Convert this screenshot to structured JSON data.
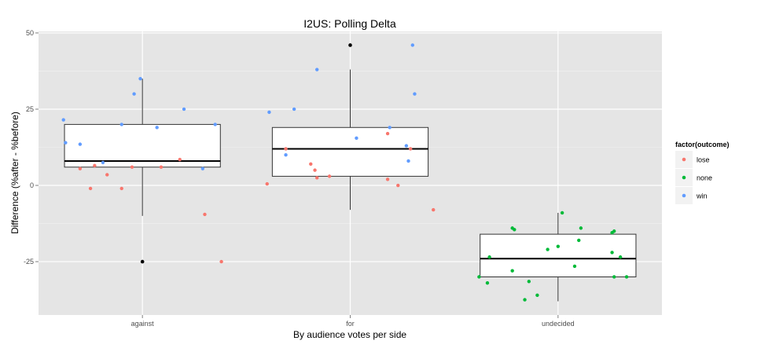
{
  "chart_data": {
    "type": "boxplot-jitter",
    "title": "I2US:  Polling Delta",
    "xlabel": "By audience votes per side",
    "ylabel": "Difference (%after - %before)",
    "categories": [
      "against",
      "for",
      "undecided"
    ],
    "y_ticks": [
      -25,
      0,
      25,
      50
    ],
    "ylim": [
      -42.5,
      50.5
    ],
    "grid": true,
    "legend": {
      "title": "factor(outcome)",
      "placement": "right",
      "entries": [
        "lose",
        "none",
        "win"
      ]
    },
    "colors": {
      "lose": "#F8766D",
      "none": "#00BA38",
      "win": "#619CFF",
      "outlier": "#000000",
      "panel": "#E5E5E5",
      "grid_major": "#FFFFFF",
      "grid_minor": "#F2F2F2"
    },
    "boxes": [
      {
        "category": "against",
        "whisker_low": -10,
        "q1": 6,
        "median": 8,
        "q3": 20,
        "whisker_high": 35,
        "outliers": [
          -25
        ]
      },
      {
        "category": "for",
        "whisker_low": -8,
        "q1": 3,
        "median": 12,
        "q3": 19,
        "whisker_high": 38,
        "outliers": [
          46
        ]
      },
      {
        "category": "undecided",
        "whisker_low": -38,
        "q1": -30,
        "median": -24,
        "q3": -16,
        "whisker_high": -9,
        "outliers": []
      }
    ],
    "points": [
      {
        "category": "against",
        "jitter": -0.38,
        "y": 21.5,
        "outcome": "win"
      },
      {
        "category": "against",
        "jitter": -0.37,
        "y": 14,
        "outcome": "win"
      },
      {
        "category": "against",
        "jitter": -0.3,
        "y": 13.5,
        "outcome": "win"
      },
      {
        "category": "against",
        "jitter": -0.19,
        "y": 7.5,
        "outcome": "win"
      },
      {
        "category": "against",
        "jitter": -0.1,
        "y": 20,
        "outcome": "win"
      },
      {
        "category": "against",
        "jitter": -0.04,
        "y": 30,
        "outcome": "win"
      },
      {
        "category": "against",
        "jitter": -0.01,
        "y": 35,
        "outcome": "win"
      },
      {
        "category": "against",
        "jitter": 0.07,
        "y": 19,
        "outcome": "win"
      },
      {
        "category": "against",
        "jitter": 0.2,
        "y": 25,
        "outcome": "win"
      },
      {
        "category": "against",
        "jitter": 0.29,
        "y": 5.5,
        "outcome": "win"
      },
      {
        "category": "against",
        "jitter": 0.35,
        "y": 20,
        "outcome": "win"
      },
      {
        "category": "against",
        "jitter": -0.3,
        "y": 5.5,
        "outcome": "lose"
      },
      {
        "category": "against",
        "jitter": -0.25,
        "y": -1,
        "outcome": "lose"
      },
      {
        "category": "against",
        "jitter": -0.23,
        "y": 6.5,
        "outcome": "lose"
      },
      {
        "category": "against",
        "jitter": -0.17,
        "y": 3.5,
        "outcome": "lose"
      },
      {
        "category": "against",
        "jitter": -0.1,
        "y": -1,
        "outcome": "lose"
      },
      {
        "category": "against",
        "jitter": -0.05,
        "y": 6,
        "outcome": "lose"
      },
      {
        "category": "against",
        "jitter": 0.09,
        "y": 6,
        "outcome": "lose"
      },
      {
        "category": "against",
        "jitter": 0.18,
        "y": 8.5,
        "outcome": "lose"
      },
      {
        "category": "against",
        "jitter": 0.3,
        "y": -9.5,
        "outcome": "lose"
      },
      {
        "category": "against",
        "jitter": 0.38,
        "y": -25,
        "outcome": "lose"
      },
      {
        "category": "for",
        "jitter": -0.39,
        "y": 24,
        "outcome": "win"
      },
      {
        "category": "for",
        "jitter": -0.31,
        "y": 10,
        "outcome": "win"
      },
      {
        "category": "for",
        "jitter": -0.27,
        "y": 25,
        "outcome": "win"
      },
      {
        "category": "for",
        "jitter": -0.16,
        "y": 38,
        "outcome": "win"
      },
      {
        "category": "for",
        "jitter": 0.03,
        "y": 15.5,
        "outcome": "win"
      },
      {
        "category": "for",
        "jitter": 0.19,
        "y": 19,
        "outcome": "win"
      },
      {
        "category": "for",
        "jitter": 0.27,
        "y": 13,
        "outcome": "win"
      },
      {
        "category": "for",
        "jitter": 0.28,
        "y": 8,
        "outcome": "win"
      },
      {
        "category": "for",
        "jitter": 0.3,
        "y": 46,
        "outcome": "win"
      },
      {
        "category": "for",
        "jitter": 0.31,
        "y": 30,
        "outcome": "win"
      },
      {
        "category": "for",
        "jitter": -0.4,
        "y": 0.5,
        "outcome": "lose"
      },
      {
        "category": "for",
        "jitter": -0.31,
        "y": 12,
        "outcome": "lose"
      },
      {
        "category": "for",
        "jitter": -0.19,
        "y": 7,
        "outcome": "lose"
      },
      {
        "category": "for",
        "jitter": -0.17,
        "y": 5,
        "outcome": "lose"
      },
      {
        "category": "for",
        "jitter": -0.16,
        "y": 2.5,
        "outcome": "lose"
      },
      {
        "category": "for",
        "jitter": -0.1,
        "y": 3,
        "outcome": "lose"
      },
      {
        "category": "for",
        "jitter": 0.18,
        "y": 17,
        "outcome": "lose"
      },
      {
        "category": "for",
        "jitter": 0.18,
        "y": 2,
        "outcome": "lose"
      },
      {
        "category": "for",
        "jitter": 0.23,
        "y": 0,
        "outcome": "lose"
      },
      {
        "category": "for",
        "jitter": 0.29,
        "y": 12,
        "outcome": "lose"
      },
      {
        "category": "for",
        "jitter": 0.4,
        "y": -8,
        "outcome": "lose"
      },
      {
        "category": "undecided",
        "jitter": -0.38,
        "y": -30,
        "outcome": "none"
      },
      {
        "category": "undecided",
        "jitter": -0.34,
        "y": -32,
        "outcome": "none"
      },
      {
        "category": "undecided",
        "jitter": -0.33,
        "y": -23.5,
        "outcome": "none"
      },
      {
        "category": "undecided",
        "jitter": -0.22,
        "y": -28,
        "outcome": "none"
      },
      {
        "category": "undecided",
        "jitter": -0.22,
        "y": -14,
        "outcome": "none"
      },
      {
        "category": "undecided",
        "jitter": -0.21,
        "y": -14.5,
        "outcome": "none"
      },
      {
        "category": "undecided",
        "jitter": -0.16,
        "y": -37.5,
        "outcome": "none"
      },
      {
        "category": "undecided",
        "jitter": -0.14,
        "y": -31.5,
        "outcome": "none"
      },
      {
        "category": "undecided",
        "jitter": -0.1,
        "y": -36,
        "outcome": "none"
      },
      {
        "category": "undecided",
        "jitter": -0.05,
        "y": -21,
        "outcome": "none"
      },
      {
        "category": "undecided",
        "jitter": 0.0,
        "y": -20,
        "outcome": "none"
      },
      {
        "category": "undecided",
        "jitter": 0.02,
        "y": -9,
        "outcome": "none"
      },
      {
        "category": "undecided",
        "jitter": 0.08,
        "y": -26.5,
        "outcome": "none"
      },
      {
        "category": "undecided",
        "jitter": 0.1,
        "y": -18,
        "outcome": "none"
      },
      {
        "category": "undecided",
        "jitter": 0.11,
        "y": -14,
        "outcome": "none"
      },
      {
        "category": "undecided",
        "jitter": 0.26,
        "y": -22,
        "outcome": "none"
      },
      {
        "category": "undecided",
        "jitter": 0.27,
        "y": -30,
        "outcome": "none"
      },
      {
        "category": "undecided",
        "jitter": 0.26,
        "y": -15.5,
        "outcome": "none"
      },
      {
        "category": "undecided",
        "jitter": 0.27,
        "y": -15,
        "outcome": "none"
      },
      {
        "category": "undecided",
        "jitter": 0.3,
        "y": -23.5,
        "outcome": "none"
      },
      {
        "category": "undecided",
        "jitter": 0.33,
        "y": -30,
        "outcome": "none"
      }
    ]
  }
}
